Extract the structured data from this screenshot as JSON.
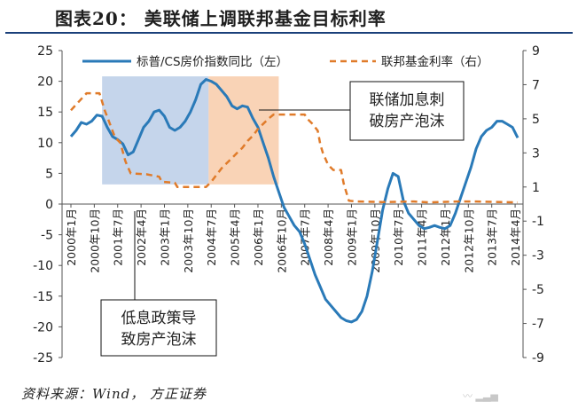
{
  "header": {
    "title": "图表20：  美联储上调联邦基金目标利率"
  },
  "footer": {
    "source": "资料来源：Wind， 方正证券",
    "watermark": "〰 ▂▃▅"
  },
  "colors": {
    "cs_line": "#2a7ab8",
    "ffr_line": "#e07b2a",
    "shade_blue": "#b7cae6",
    "shade_orange": "#f8c8a4"
  },
  "chart_data": {
    "type": "line",
    "x_unit": "month",
    "x_range": [
      "2000-01",
      "2014-05"
    ],
    "categories": [
      "2000年1月",
      "2000年10月",
      "2001年7月",
      "2002年4月",
      "2003年1月",
      "2003年10月",
      "2004年7月",
      "2005年4月",
      "2006年1月",
      "2006年10月",
      "2007年7月",
      "2008年4月",
      "2009年1月",
      "2009年10月",
      "2010年7月",
      "2011年4月",
      "2012年1月",
      "2012年10月",
      "2013年7月",
      "2014年4月"
    ],
    "y_left": {
      "min": -25,
      "max": 25,
      "ticks": [
        -25,
        -20,
        -15,
        -10,
        -5,
        0,
        5,
        10,
        15,
        20,
        25
      ]
    },
    "y_right": {
      "min": -9,
      "max": 9,
      "ticks": [
        -9,
        -7,
        -5,
        -3,
        -1,
        1,
        3,
        5,
        7,
        9
      ]
    },
    "series": [
      {
        "name": "标普/CS房价指数同比（左）",
        "axis": "left",
        "points": [
          [
            "2000-01",
            11.0
          ],
          [
            "2000-03",
            12.0
          ],
          [
            "2000-05",
            13.3
          ],
          [
            "2000-07",
            13.0
          ],
          [
            "2000-09",
            13.5
          ],
          [
            "2000-11",
            14.5
          ],
          [
            "2001-01",
            14.3
          ],
          [
            "2001-03",
            12.5
          ],
          [
            "2001-05",
            11.0
          ],
          [
            "2001-07",
            10.5
          ],
          [
            "2001-09",
            9.8
          ],
          [
            "2001-11",
            8.0
          ],
          [
            "2002-01",
            8.5
          ],
          [
            "2002-03",
            10.5
          ],
          [
            "2002-05",
            12.5
          ],
          [
            "2002-07",
            13.5
          ],
          [
            "2002-09",
            15.0
          ],
          [
            "2002-11",
            15.3
          ],
          [
            "2003-01",
            14.3
          ],
          [
            "2003-03",
            12.5
          ],
          [
            "2003-05",
            12.0
          ],
          [
            "2003-07",
            12.5
          ],
          [
            "2003-09",
            13.5
          ],
          [
            "2003-11",
            15.0
          ],
          [
            "2004-01",
            17.0
          ],
          [
            "2004-03",
            19.5
          ],
          [
            "2004-05",
            20.3
          ],
          [
            "2004-07",
            20.0
          ],
          [
            "2004-09",
            19.5
          ],
          [
            "2004-11",
            18.5
          ],
          [
            "2005-01",
            17.5
          ],
          [
            "2005-03",
            16.0
          ],
          [
            "2005-05",
            15.5
          ],
          [
            "2005-07",
            16.0
          ],
          [
            "2005-09",
            15.8
          ],
          [
            "2005-11",
            14.0
          ],
          [
            "2006-01",
            12.5
          ],
          [
            "2006-03",
            10.0
          ],
          [
            "2006-05",
            7.5
          ],
          [
            "2006-07",
            4.5
          ],
          [
            "2006-09",
            2.0
          ],
          [
            "2006-11",
            -0.5
          ],
          [
            "2007-01",
            -2.0
          ],
          [
            "2007-03",
            -3.5
          ],
          [
            "2007-05",
            -4.5
          ],
          [
            "2007-07",
            -6.5
          ],
          [
            "2007-09",
            -9.0
          ],
          [
            "2007-11",
            -11.5
          ],
          [
            "2008-01",
            -13.5
          ],
          [
            "2008-03",
            -15.5
          ],
          [
            "2008-05",
            -16.5
          ],
          [
            "2008-07",
            -17.5
          ],
          [
            "2008-09",
            -18.5
          ],
          [
            "2008-11",
            -19.0
          ],
          [
            "2009-01",
            -19.2
          ],
          [
            "2009-03",
            -18.8
          ],
          [
            "2009-05",
            -17.5
          ],
          [
            "2009-07",
            -15.0
          ],
          [
            "2009-09",
            -11.0
          ],
          [
            "2009-11",
            -6.0
          ],
          [
            "2010-01",
            -1.0
          ],
          [
            "2010-03",
            2.5
          ],
          [
            "2010-05",
            5.0
          ],
          [
            "2010-07",
            4.5
          ],
          [
            "2010-09",
            0.5
          ],
          [
            "2010-11",
            -1.5
          ],
          [
            "2011-01",
            -2.5
          ],
          [
            "2011-03",
            -3.5
          ],
          [
            "2011-05",
            -4.0
          ],
          [
            "2011-07",
            -3.8
          ],
          [
            "2011-09",
            -3.5
          ],
          [
            "2011-11",
            -3.8
          ],
          [
            "2012-01",
            -4.0
          ],
          [
            "2012-03",
            -3.5
          ],
          [
            "2012-05",
            -1.5
          ],
          [
            "2012-07",
            1.0
          ],
          [
            "2012-09",
            3.5
          ],
          [
            "2012-11",
            6.0
          ],
          [
            "2013-01",
            9.0
          ],
          [
            "2013-03",
            11.0
          ],
          [
            "2013-05",
            12.0
          ],
          [
            "2013-07",
            12.5
          ],
          [
            "2013-09",
            13.5
          ],
          [
            "2013-11",
            13.5
          ],
          [
            "2014-01",
            13.0
          ],
          [
            "2014-03",
            12.5
          ],
          [
            "2014-05",
            10.8
          ]
        ]
      },
      {
        "name": "联邦基金利率（右）",
        "axis": "right",
        "points": [
          [
            "2000-01",
            5.5
          ],
          [
            "2000-04",
            6.0
          ],
          [
            "2000-07",
            6.5
          ],
          [
            "2000-10",
            6.5
          ],
          [
            "2000-12",
            6.5
          ],
          [
            "2001-01",
            6.0
          ],
          [
            "2001-02",
            5.5
          ],
          [
            "2001-04",
            4.7
          ],
          [
            "2001-06",
            3.9
          ],
          [
            "2001-08",
            3.6
          ],
          [
            "2001-10",
            2.5
          ],
          [
            "2001-12",
            1.8
          ],
          [
            "2002-06",
            1.75
          ],
          [
            "2002-11",
            1.6
          ],
          [
            "2002-12",
            1.3
          ],
          [
            "2003-05",
            1.25
          ],
          [
            "2003-06",
            1.0
          ],
          [
            "2004-05",
            1.0
          ],
          [
            "2004-07",
            1.3
          ],
          [
            "2004-09",
            1.7
          ],
          [
            "2004-11",
            2.1
          ],
          [
            "2005-01",
            2.4
          ],
          [
            "2005-03",
            2.7
          ],
          [
            "2005-05",
            3.0
          ],
          [
            "2005-07",
            3.3
          ],
          [
            "2005-09",
            3.7
          ],
          [
            "2005-11",
            4.0
          ],
          [
            "2006-01",
            4.4
          ],
          [
            "2006-03",
            4.7
          ],
          [
            "2006-05",
            5.0
          ],
          [
            "2006-07",
            5.25
          ],
          [
            "2007-07",
            5.25
          ],
          [
            "2007-08",
            5.0
          ],
          [
            "2007-10",
            4.7
          ],
          [
            "2007-12",
            4.3
          ],
          [
            "2008-01",
            3.5
          ],
          [
            "2008-02",
            3.0
          ],
          [
            "2008-04",
            2.3
          ],
          [
            "2008-06",
            2.0
          ],
          [
            "2008-09",
            2.0
          ],
          [
            "2008-10",
            1.2
          ],
          [
            "2008-12",
            0.2
          ],
          [
            "2009-03",
            0.15
          ],
          [
            "2010-01",
            0.12
          ],
          [
            "2011-01",
            0.15
          ],
          [
            "2011-07",
            0.1
          ],
          [
            "2012-06",
            0.15
          ],
          [
            "2013-01",
            0.15
          ],
          [
            "2014-05",
            0.1
          ]
        ]
      }
    ],
    "shaded_periods": [
      {
        "from": "2001-01",
        "to": "2004-06",
        "color": "blue"
      },
      {
        "from": "2004-06",
        "to": "2006-09",
        "color": "orange"
      }
    ],
    "annotations": [
      {
        "lines": [
          "低息政策导",
          "致房产泡沫"
        ]
      },
      {
        "lines": [
          "联储加息刺",
          "破房产泡沫"
        ]
      }
    ],
    "legend_position": "top",
    "grid": false
  }
}
